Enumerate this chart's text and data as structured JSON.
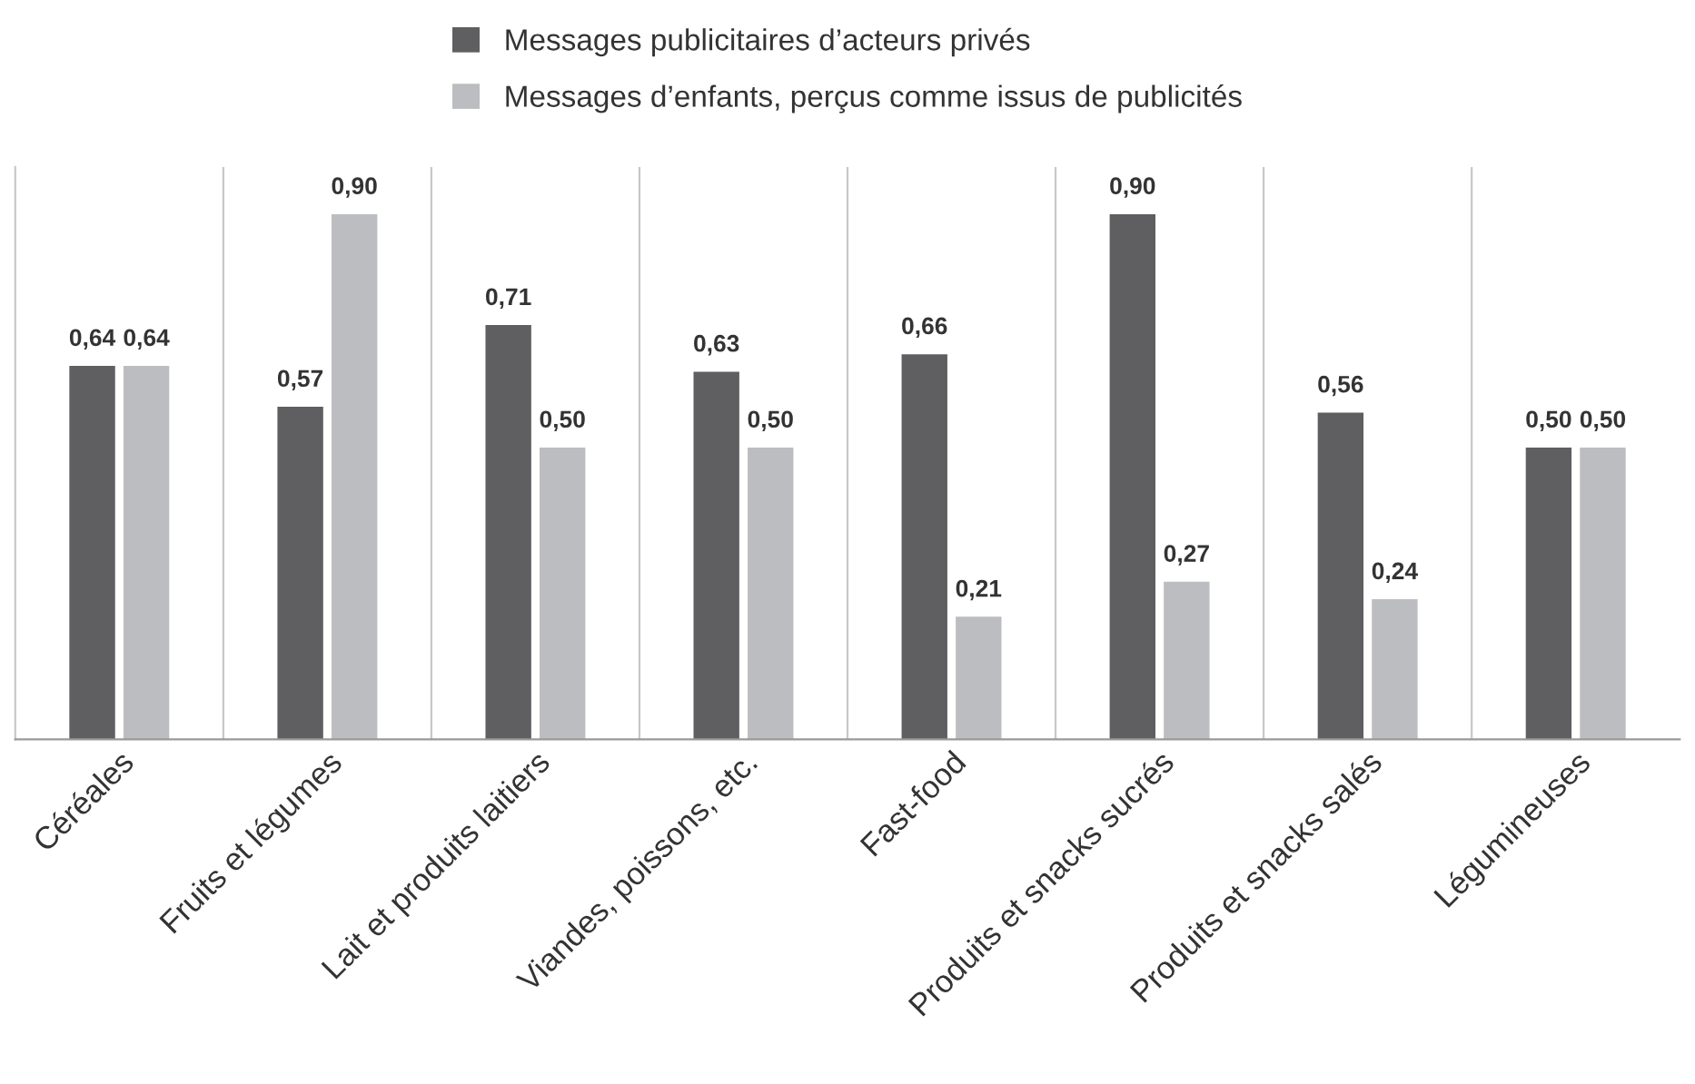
{
  "chart_data": {
    "type": "bar",
    "categories": [
      "Céréales",
      "Fruits et légumes",
      "Lait et produits laitiers",
      "Viandes, poissons, etc.",
      "Fast-food",
      "Produits et snacks sucrés",
      "Produits et snacks salés",
      "Légumineuses"
    ],
    "series": [
      {
        "name": "Messages publicitaires d’acteurs privés",
        "color": "#5f5f61",
        "values": [
          0.64,
          0.57,
          0.71,
          0.63,
          0.66,
          0.9,
          0.56,
          0.5
        ],
        "value_labels": [
          "0,64",
          "0,57",
          "0,71",
          "0,63",
          "0,66",
          "0,90",
          "0,56",
          "0,50"
        ]
      },
      {
        "name": "Messages d’enfants, perçus comme issus de publicités",
        "color": "#bcbdc0",
        "values": [
          0.64,
          0.9,
          0.5,
          0.5,
          0.21,
          0.27,
          0.24,
          0.5
        ],
        "value_labels": [
          "0,64",
          "0,90",
          "0,50",
          "0,50",
          "0,21",
          "0,27",
          "0,24",
          "0,50"
        ]
      }
    ],
    "grid": "x",
    "legend": "top",
    "tick_labels": "x"
  }
}
